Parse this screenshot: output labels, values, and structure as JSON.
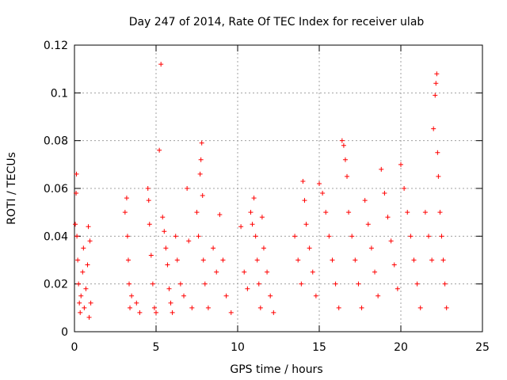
{
  "chart_data": {
    "type": "scatter",
    "title": "Day 247 of 2014, Rate Of TEC Index for receiver ulab",
    "xlabel": "GPS time / hours",
    "ylabel": "ROTI / TECUs",
    "xlim": [
      0,
      25
    ],
    "ylim": [
      0,
      0.12
    ],
    "xticks": [
      "0",
      "5",
      "10",
      "15",
      "20",
      "25"
    ],
    "yticks": [
      "0",
      "0.02",
      "0.04",
      "0.06",
      "0.08",
      "0.1",
      "0.12"
    ],
    "grid": true,
    "marker": "+",
    "color": "#ff0000",
    "points": [
      [
        0.05,
        0.045
      ],
      [
        0.1,
        0.058
      ],
      [
        0.12,
        0.066
      ],
      [
        0.15,
        0.04
      ],
      [
        0.2,
        0.03
      ],
      [
        0.25,
        0.02
      ],
      [
        0.3,
        0.012
      ],
      [
        0.35,
        0.008
      ],
      [
        0.4,
        0.015
      ],
      [
        0.5,
        0.025
      ],
      [
        0.55,
        0.035
      ],
      [
        0.6,
        0.01
      ],
      [
        0.7,
        0.018
      ],
      [
        0.8,
        0.028
      ],
      [
        0.85,
        0.044
      ],
      [
        0.9,
        0.006
      ],
      [
        0.95,
        0.038
      ],
      [
        1.0,
        0.012
      ],
      [
        3.1,
        0.05
      ],
      [
        3.2,
        0.056
      ],
      [
        3.25,
        0.04
      ],
      [
        3.3,
        0.03
      ],
      [
        3.35,
        0.02
      ],
      [
        3.4,
        0.01
      ],
      [
        3.5,
        0.015
      ],
      [
        3.8,
        0.012
      ],
      [
        4.0,
        0.008
      ],
      [
        4.5,
        0.06
      ],
      [
        4.55,
        0.055
      ],
      [
        4.6,
        0.045
      ],
      [
        4.7,
        0.032
      ],
      [
        4.8,
        0.02
      ],
      [
        4.9,
        0.01
      ],
      [
        5.0,
        0.008
      ],
      [
        5.2,
        0.076
      ],
      [
        5.3,
        0.112
      ],
      [
        5.4,
        0.048
      ],
      [
        5.5,
        0.042
      ],
      [
        5.6,
        0.035
      ],
      [
        5.7,
        0.028
      ],
      [
        5.8,
        0.018
      ],
      [
        5.9,
        0.012
      ],
      [
        6.0,
        0.008
      ],
      [
        6.2,
        0.04
      ],
      [
        6.3,
        0.03
      ],
      [
        6.5,
        0.02
      ],
      [
        6.7,
        0.015
      ],
      [
        6.9,
        0.06
      ],
      [
        7.0,
        0.038
      ],
      [
        7.2,
        0.01
      ],
      [
        7.5,
        0.05
      ],
      [
        7.6,
        0.04
      ],
      [
        7.7,
        0.066
      ],
      [
        7.75,
        0.072
      ],
      [
        7.8,
        0.079
      ],
      [
        7.85,
        0.057
      ],
      [
        7.9,
        0.03
      ],
      [
        8.0,
        0.02
      ],
      [
        8.2,
        0.01
      ],
      [
        8.5,
        0.035
      ],
      [
        8.7,
        0.025
      ],
      [
        8.9,
        0.049
      ],
      [
        9.1,
        0.03
      ],
      [
        9.3,
        0.015
      ],
      [
        9.6,
        0.008
      ],
      [
        10.2,
        0.044
      ],
      [
        10.4,
        0.025
      ],
      [
        10.6,
        0.018
      ],
      [
        10.8,
        0.05
      ],
      [
        10.9,
        0.045
      ],
      [
        11.0,
        0.056
      ],
      [
        11.1,
        0.04
      ],
      [
        11.2,
        0.03
      ],
      [
        11.3,
        0.02
      ],
      [
        11.4,
        0.01
      ],
      [
        11.5,
        0.048
      ],
      [
        11.6,
        0.035
      ],
      [
        11.8,
        0.025
      ],
      [
        12.0,
        0.015
      ],
      [
        12.2,
        0.008
      ],
      [
        13.5,
        0.04
      ],
      [
        13.7,
        0.03
      ],
      [
        13.9,
        0.02
      ],
      [
        14.0,
        0.063
      ],
      [
        14.1,
        0.055
      ],
      [
        14.2,
        0.045
      ],
      [
        14.4,
        0.035
      ],
      [
        14.6,
        0.025
      ],
      [
        14.8,
        0.015
      ],
      [
        15.0,
        0.062
      ],
      [
        15.2,
        0.058
      ],
      [
        15.4,
        0.05
      ],
      [
        15.6,
        0.04
      ],
      [
        15.8,
        0.03
      ],
      [
        16.0,
        0.02
      ],
      [
        16.2,
        0.01
      ],
      [
        16.4,
        0.08
      ],
      [
        16.5,
        0.078
      ],
      [
        16.6,
        0.072
      ],
      [
        16.7,
        0.065
      ],
      [
        16.8,
        0.05
      ],
      [
        17.0,
        0.04
      ],
      [
        17.2,
        0.03
      ],
      [
        17.4,
        0.02
      ],
      [
        17.6,
        0.01
      ],
      [
        17.8,
        0.055
      ],
      [
        18.0,
        0.045
      ],
      [
        18.2,
        0.035
      ],
      [
        18.4,
        0.025
      ],
      [
        18.6,
        0.015
      ],
      [
        18.8,
        0.068
      ],
      [
        19.0,
        0.058
      ],
      [
        19.2,
        0.048
      ],
      [
        19.4,
        0.038
      ],
      [
        19.6,
        0.028
      ],
      [
        19.8,
        0.018
      ],
      [
        20.0,
        0.07
      ],
      [
        20.2,
        0.06
      ],
      [
        20.4,
        0.05
      ],
      [
        20.6,
        0.04
      ],
      [
        20.8,
        0.03
      ],
      [
        21.0,
        0.02
      ],
      [
        21.2,
        0.01
      ],
      [
        21.5,
        0.05
      ],
      [
        21.7,
        0.04
      ],
      [
        21.9,
        0.03
      ],
      [
        22.0,
        0.085
      ],
      [
        22.1,
        0.099
      ],
      [
        22.15,
        0.104
      ],
      [
        22.2,
        0.108
      ],
      [
        22.25,
        0.075
      ],
      [
        22.3,
        0.065
      ],
      [
        22.4,
        0.05
      ],
      [
        22.5,
        0.04
      ],
      [
        22.6,
        0.03
      ],
      [
        22.7,
        0.02
      ],
      [
        22.8,
        0.01
      ]
    ]
  }
}
